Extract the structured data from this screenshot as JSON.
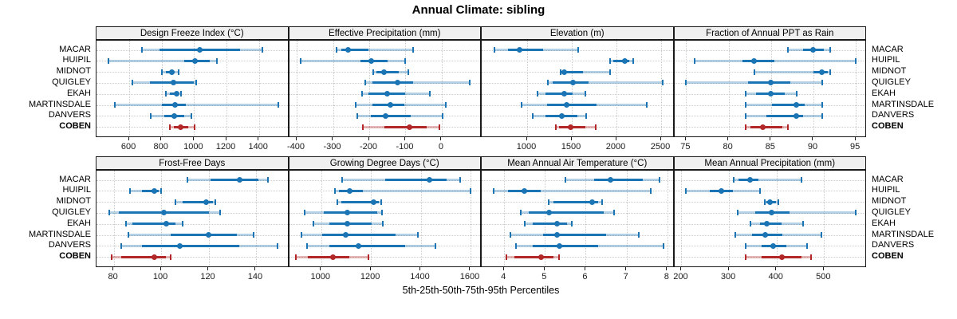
{
  "title": "Annual Climate: sibling",
  "axis_caption": "5th-25th-50th-75th-95th Percentiles",
  "percentile_labels": [
    "5th",
    "25th",
    "50th",
    "75th",
    "95th"
  ],
  "stations": [
    "MACAR",
    "HUIPIL",
    "MIDNOT",
    "QUIGLEY",
    "EKAH",
    "MARTINSDALE",
    "DANVERS",
    "COBEN"
  ],
  "highlight_station": "COBEN",
  "colors": {
    "series": "#1B74B3",
    "highlight": "#B22727",
    "band_alpha": 0.33,
    "grid": "#CBCBCB",
    "header_bg": "#F0F0F0",
    "border": "#1A1A1A"
  },
  "chart_data": [
    {
      "type": "interval",
      "row": 0,
      "col": 0,
      "title": "Design Freeze Index (°C)",
      "ticks": [
        600,
        800,
        1000,
        1200,
        1400
      ],
      "xlim": [
        398,
        1586
      ],
      "series": [
        {
          "name": "MACAR",
          "values": [
            677,
            785,
            1034,
            1284,
            1423
          ]
        },
        {
          "name": "HUIPIL",
          "values": [
            472,
            939,
            1005,
            1095,
            1140
          ]
        },
        {
          "name": "MIDNOT",
          "values": [
            803,
            825,
            862,
            882,
            906
          ]
        },
        {
          "name": "QUIGLEY",
          "values": [
            620,
            726,
            874,
            1000,
            1013
          ]
        },
        {
          "name": "EKAH",
          "values": [
            828,
            849,
            890,
            906,
            920
          ]
        },
        {
          "name": "MARTINSDALE",
          "values": [
            513,
            800,
            885,
            948,
            1518
          ]
        },
        {
          "name": "DANVERS",
          "values": [
            731,
            816,
            877,
            939,
            985
          ]
        },
        {
          "name": "COBEN",
          "values": [
            852,
            874,
            918,
            964,
            1005
          ]
        }
      ]
    },
    {
      "type": "interval",
      "row": 0,
      "col": 1,
      "title": "Effective Precipitation (mm)",
      "ticks": [
        -400,
        -300,
        -200,
        -100,
        0
      ],
      "xlim": [
        -421,
        110
      ],
      "series": [
        {
          "name": "MACAR",
          "values": [
            -290,
            -278,
            -258,
            -203,
            -80
          ]
        },
        {
          "name": "HUIPIL",
          "values": [
            -390,
            -225,
            -195,
            -150,
            -100
          ]
        },
        {
          "name": "MIDNOT",
          "values": [
            -190,
            -180,
            -159,
            -119,
            -92
          ]
        },
        {
          "name": "QUIGLEY",
          "values": [
            -212,
            -192,
            -123,
            -78,
            76
          ]
        },
        {
          "name": "EKAH",
          "values": [
            -220,
            -202,
            -151,
            -100,
            -32
          ]
        },
        {
          "name": "MARTINSDALE",
          "values": [
            -237,
            -191,
            -142,
            -104,
            10
          ]
        },
        {
          "name": "DANVERS",
          "values": [
            -234,
            -195,
            -154,
            -85,
            2
          ]
        },
        {
          "name": "COBEN",
          "values": [
            -217,
            -159,
            -88,
            -41,
            -7
          ]
        }
      ]
    },
    {
      "type": "interval",
      "row": 0,
      "col": 2,
      "title": "Elevation (m)",
      "ticks": [
        1000,
        1500,
        2000,
        2500
      ],
      "xlim": [
        491,
        2647
      ],
      "series": [
        {
          "name": "MACAR",
          "values": [
            630,
            790,
            917,
            1180,
            1574
          ]
        },
        {
          "name": "HUIPIL",
          "values": [
            1931,
            1967,
            2093,
            2146,
            2185
          ]
        },
        {
          "name": "MIDNOT",
          "values": [
            1372,
            1388,
            1411,
            1625,
            1931
          ]
        },
        {
          "name": "QUIGLEY",
          "values": [
            1232,
            1283,
            1512,
            1685,
            2518
          ]
        },
        {
          "name": "EKAH",
          "values": [
            1119,
            1208,
            1411,
            1506,
            1655
          ]
        },
        {
          "name": "MARTINSDALE",
          "values": [
            935,
            1223,
            1440,
            1774,
            2339
          ]
        },
        {
          "name": "DANVERS",
          "values": [
            1060,
            1208,
            1387,
            1565,
            1663
          ]
        },
        {
          "name": "COBEN",
          "values": [
            1321,
            1357,
            1485,
            1655,
            1768
          ]
        }
      ]
    },
    {
      "type": "interval",
      "row": 0,
      "col": 3,
      "title": "Fraction of Annual PPT as Rain",
      "ticks": [
        75,
        80,
        85,
        90,
        95
      ],
      "xlim": [
        73.6,
        96.3
      ],
      "series": [
        {
          "name": "MACAR",
          "values": [
            87,
            88.8,
            90,
            91.2,
            92
          ]
        },
        {
          "name": "HUIPIL",
          "values": [
            76,
            81.6,
            83,
            85.4,
            95
          ]
        },
        {
          "name": "MIDNOT",
          "values": [
            83,
            90,
            91,
            91.7,
            92
          ]
        },
        {
          "name": "QUIGLEY",
          "values": [
            75,
            82.3,
            85,
            87.3,
            91
          ]
        },
        {
          "name": "EKAH",
          "values": [
            82,
            83.2,
            85,
            86.6,
            88
          ]
        },
        {
          "name": "MARTINSDALE",
          "values": [
            82,
            85.1,
            88,
            89,
            91
          ]
        },
        {
          "name": "DANVERS",
          "values": [
            82,
            84.5,
            88,
            88.8,
            91
          ]
        },
        {
          "name": "COBEN",
          "values": [
            82,
            82.6,
            84,
            86.3,
            87
          ]
        }
      ]
    },
    {
      "type": "interval",
      "row": 1,
      "col": 0,
      "title": "Frost-Free Days",
      "ticks": [
        80,
        100,
        120,
        140
      ],
      "xlim": [
        72.7,
        154
      ],
      "series": [
        {
          "name": "MACAR",
          "values": [
            111,
            121,
            133,
            141,
            145
          ]
        },
        {
          "name": "HUIPIL",
          "values": [
            87,
            92,
            97,
            99,
            100
          ]
        },
        {
          "name": "MIDNOT",
          "values": [
            106,
            109,
            119,
            122,
            123
          ]
        },
        {
          "name": "QUIGLEY",
          "values": [
            78,
            82,
            101,
            120,
            125
          ]
        },
        {
          "name": "EKAH",
          "values": [
            85,
            88,
            102,
            106,
            109
          ]
        },
        {
          "name": "MARTINSDALE",
          "values": [
            86,
            104,
            120,
            132,
            139
          ]
        },
        {
          "name": "DANVERS",
          "values": [
            83,
            92,
            108,
            133,
            149
          ]
        },
        {
          "name": "COBEN",
          "values": [
            79,
            83,
            97,
            102,
            104
          ]
        }
      ]
    },
    {
      "type": "interval",
      "row": 1,
      "col": 1,
      "title": "Growing Degree Days (°C)",
      "ticks": [
        1000,
        1200,
        1400,
        1600
      ],
      "xlim": [
        871,
        1645
      ],
      "series": [
        {
          "name": "MACAR",
          "values": [
            1085,
            1257,
            1435,
            1503,
            1557
          ]
        },
        {
          "name": "HUIPIL",
          "values": [
            1056,
            1070,
            1114,
            1166,
            1600
          ]
        },
        {
          "name": "MIDNOT",
          "values": [
            1064,
            1080,
            1211,
            1230,
            1241
          ]
        },
        {
          "name": "QUIGLEY",
          "values": [
            934,
            1011,
            1104,
            1225,
            1243
          ]
        },
        {
          "name": "EKAH",
          "values": [
            968,
            1032,
            1104,
            1203,
            1246
          ]
        },
        {
          "name": "MARTINSDALE",
          "values": [
            920,
            1005,
            1100,
            1300,
            1389
          ]
        },
        {
          "name": "DANVERS",
          "values": [
            944,
            1032,
            1150,
            1337,
            1458
          ]
        },
        {
          "name": "COBEN",
          "values": [
            898,
            946,
            1048,
            1112,
            1190
          ]
        }
      ]
    },
    {
      "type": "interval",
      "row": 1,
      "col": 2,
      "title": "Mean Annual Air Temperature (°C)",
      "ticks": [
        4,
        5,
        6,
        7,
        8
      ],
      "xlim": [
        3.45,
        8.17
      ],
      "series": [
        {
          "name": "MACAR",
          "values": [
            5.5,
            6.2,
            6.6,
            7.4,
            7.8
          ]
        },
        {
          "name": "HUIPIL",
          "values": [
            3.75,
            4.1,
            4.5,
            4.9,
            7.6
          ]
        },
        {
          "name": "MIDNOT",
          "values": [
            5.1,
            5.2,
            6.15,
            6.3,
            6.4
          ]
        },
        {
          "name": "QUIGLEY",
          "values": [
            4.4,
            4.6,
            5.1,
            6.45,
            6.7
          ]
        },
        {
          "name": "EKAH",
          "values": [
            4.5,
            4.7,
            5.3,
            5.55,
            5.65
          ]
        },
        {
          "name": "MARTINSDALE",
          "values": [
            4.15,
            4.95,
            5.3,
            6.5,
            7.3
          ]
        },
        {
          "name": "DANVERS",
          "values": [
            4.3,
            4.7,
            5.35,
            6.3,
            7.9
          ]
        },
        {
          "name": "COBEN",
          "values": [
            4.05,
            4.25,
            4.9,
            5.2,
            5.35
          ]
        }
      ]
    },
    {
      "type": "interval",
      "row": 1,
      "col": 3,
      "title": "Mean Annual Precipitation (mm)",
      "ticks": [
        200,
        300,
        400,
        500
      ],
      "xlim": [
        185,
        590
      ],
      "series": [
        {
          "name": "MACAR",
          "values": [
            310,
            320,
            345,
            362,
            452
          ]
        },
        {
          "name": "HUIPIL",
          "values": [
            210,
            259,
            284,
            309,
            366
          ]
        },
        {
          "name": "MIDNOT",
          "values": [
            376,
            378,
            386,
            398,
            404
          ]
        },
        {
          "name": "QUIGLEY",
          "values": [
            318,
            355,
            390,
            428,
            567
          ]
        },
        {
          "name": "EKAH",
          "values": [
            345,
            365,
            380,
            410,
            455
          ]
        },
        {
          "name": "MARTINSDALE",
          "values": [
            313,
            348,
            376,
            412,
            495
          ]
        },
        {
          "name": "DANVERS",
          "values": [
            335,
            368,
            393,
            420,
            465
          ]
        },
        {
          "name": "COBEN",
          "values": [
            335,
            368,
            412,
            452,
            472
          ]
        }
      ]
    }
  ]
}
